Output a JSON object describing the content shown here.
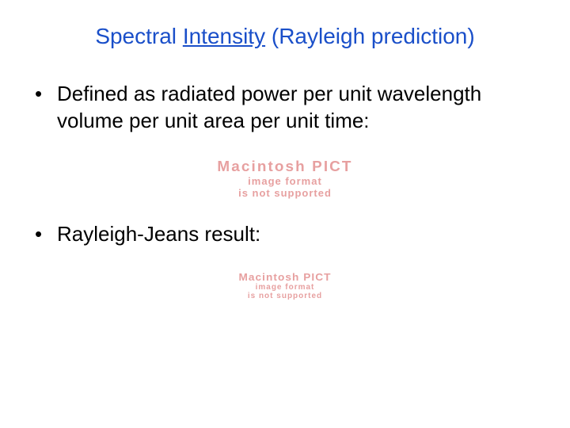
{
  "slide": {
    "title_part1": "Spectral ",
    "title_underlined": "Intensity",
    "title_part2": " (Rayleigh prediction)",
    "title_color": "#1a4fc9",
    "title_fontsize": 28,
    "bullets": [
      "Defined as radiated power per unit wavelength volume per unit area per unit time:",
      "Rayleigh-Jeans result:"
    ],
    "bullet_fontsize": 26,
    "bullet_color": "#000000",
    "background_color": "#ffffff"
  },
  "placeholder": {
    "line1": "Macintosh PICT",
    "line2": "image format",
    "line3": "is not supported",
    "color": "#e7a0a0"
  }
}
